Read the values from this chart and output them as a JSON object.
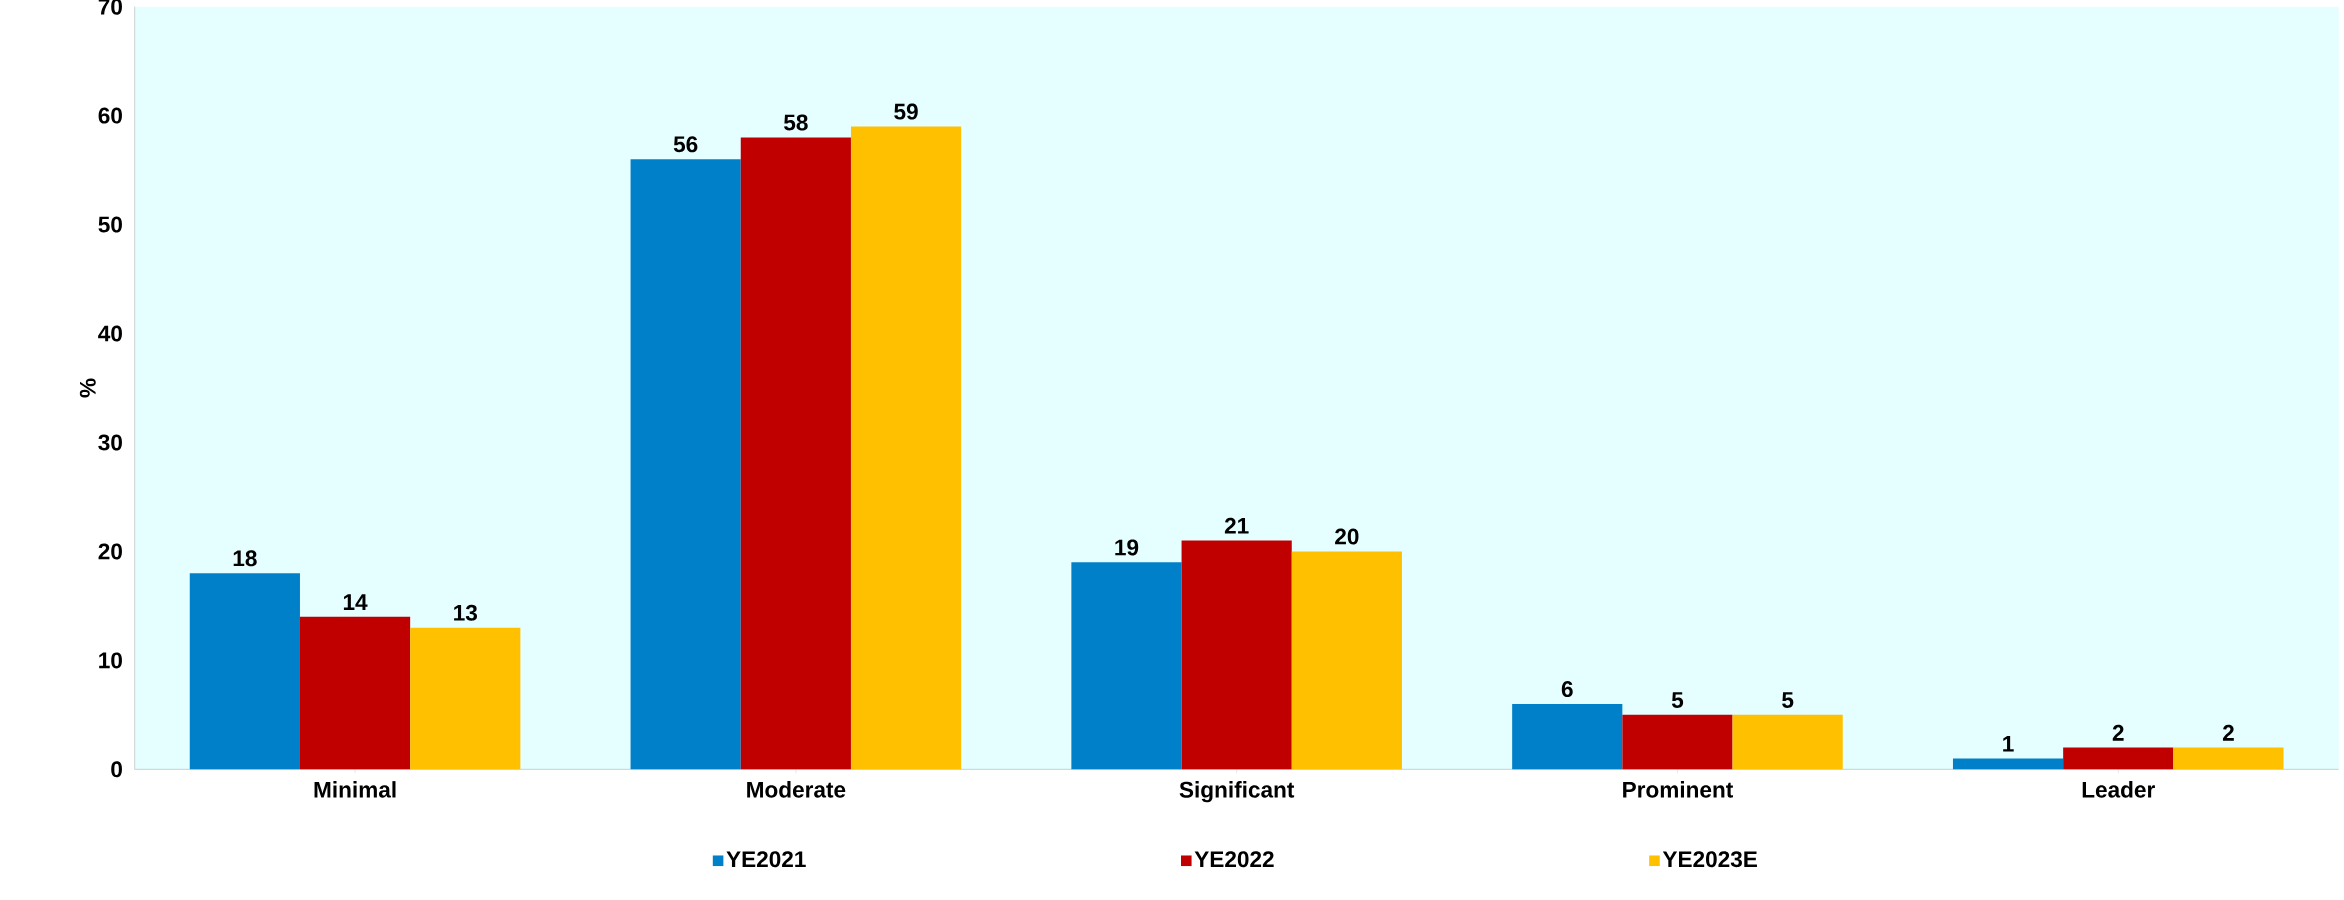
{
  "chart_data": {
    "type": "bar",
    "ylabel": "%",
    "categories": [
      "Minimal",
      "Moderate",
      "Significant",
      "Prominent",
      "Leader"
    ],
    "series": [
      {
        "name": "YE2021",
        "color": "#0080c8",
        "values": [
          18,
          56,
          19,
          6,
          1
        ]
      },
      {
        "name": "YE2022",
        "color": "#c00000",
        "values": [
          14,
          58,
          21,
          5,
          2
        ]
      },
      {
        "name": "YE2023E",
        "color": "#ffc000",
        "values": [
          13,
          59,
          20,
          5,
          2
        ]
      }
    ],
    "ylim": [
      0,
      70
    ],
    "yticks": [
      0,
      10,
      20,
      30,
      40,
      50,
      60,
      70
    ],
    "data_labels": true,
    "legend": "bottom",
    "grid": false
  }
}
